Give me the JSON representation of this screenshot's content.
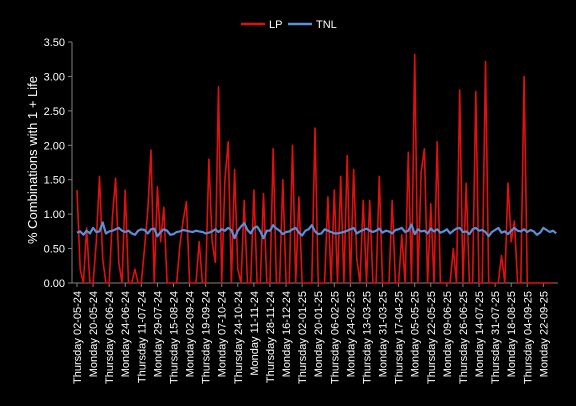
{
  "chart_data": {
    "type": "line",
    "title": "",
    "xlabel": "",
    "ylabel": "% Combinations with 1 + Life",
    "ylim": [
      0,
      3.5
    ],
    "yticks": [
      "0.00",
      "0.50",
      "1.00",
      "1.50",
      "2.00",
      "2.50",
      "3.00",
      "3.50"
    ],
    "grid": false,
    "legend_position": "top",
    "x_tick_labels": [
      "Thursday  02-05-24",
      "Monday  20-05-24",
      "Thursday  06-06-24",
      "Monday  24-06-24",
      "Thursday  11-07-24",
      "Monday  29-07-24",
      "Thursday  15-08-24",
      "Monday  02-09-24",
      "Thursday  19-09-24",
      "Monday  07-10-24",
      "Thursday  24-10-24",
      "Monday  11-11-24",
      "Thursday  28-11-24",
      "Monday  16-12-24",
      "Thursday  02-01-25",
      "Monday  20-01-25",
      "Thursday  06-02-25",
      "Monday  24-02-25",
      "Thursday  13-03-25",
      "Monday  31-03-25",
      "Thursday  17-04-25",
      "Monday  05-05-25",
      "Thursday  22-05-25",
      "Monday  09-06-25",
      "Thursday  26-06-25",
      "Monday  14-07-25",
      "Thursday  31-07-25",
      "Monday  18-08-25",
      "Thursday  04-09-25",
      "Monday  22-09-25"
    ],
    "points_per_label": 5,
    "series": [
      {
        "name": "LP",
        "color": "#e01010",
        "values": [
          1.35,
          0.2,
          0.0,
          0.8,
          0.0,
          0.0,
          0.6,
          1.55,
          0.35,
          0.0,
          0.0,
          0.95,
          1.52,
          0.3,
          0.0,
          1.35,
          0.0,
          0.0,
          0.2,
          0.0,
          0.0,
          0.5,
          1.05,
          1.93,
          0.0,
          1.4,
          0.6,
          1.1,
          0.0,
          0.0,
          0.0,
          0.0,
          0.55,
          0.9,
          1.18,
          0.0,
          0.0,
          0.0,
          0.6,
          0.0,
          0.0,
          1.8,
          0.6,
          0.3,
          2.85,
          0.0,
          1.5,
          2.05,
          0.0,
          1.65,
          0.2,
          0.0,
          1.2,
          0.0,
          0.0,
          1.35,
          0.0,
          0.0,
          1.3,
          0.0,
          0.0,
          1.95,
          0.0,
          0.0,
          1.5,
          0.0,
          0.0,
          2.0,
          0.0,
          1.25,
          0.0,
          0.0,
          0.0,
          0.0,
          2.25,
          0.0,
          0.0,
          0.0,
          1.25,
          0.0,
          1.35,
          0.0,
          1.55,
          0.0,
          1.85,
          0.0,
          1.65,
          0.35,
          0.0,
          1.2,
          0.0,
          1.2,
          0.0,
          0.0,
          1.55,
          0.0,
          0.0,
          0.0,
          1.2,
          0.0,
          0.0,
          0.7,
          0.0,
          1.9,
          0.0,
          3.32,
          0.0,
          1.6,
          1.95,
          0.0,
          1.15,
          0.0,
          2.05,
          0.0,
          0.0,
          0.0,
          0.0,
          0.5,
          0.0,
          2.8,
          0.0,
          1.45,
          0.0,
          0.0,
          2.78,
          0.0,
          0.0,
          3.22,
          0.0,
          0.0,
          0.0,
          0.0,
          0.4,
          0.0,
          1.45,
          0.6,
          0.9,
          0.0,
          0.0,
          3.0,
          0.0,
          0.0,
          0.0,
          0.0,
          0.0,
          0.0,
          0.0,
          0.0,
          0.0
        ]
      },
      {
        "name": "TNL",
        "color": "#5b8fd8",
        "values": [
          0.73,
          0.75,
          0.7,
          0.76,
          0.72,
          0.8,
          0.74,
          0.75,
          0.88,
          0.72,
          0.75,
          0.76,
          0.78,
          0.8,
          0.76,
          0.74,
          0.76,
          0.72,
          0.7,
          0.76,
          0.78,
          0.77,
          0.72,
          0.78,
          0.79,
          0.68,
          0.74,
          0.78,
          0.76,
          0.7,
          0.71,
          0.74,
          0.75,
          0.77,
          0.76,
          0.75,
          0.74,
          0.76,
          0.75,
          0.74,
          0.72,
          0.73,
          0.75,
          0.78,
          0.74,
          0.78,
          0.76,
          0.8,
          0.77,
          0.65,
          0.76,
          0.82,
          0.87,
          0.77,
          0.72,
          0.8,
          0.82,
          0.75,
          0.65,
          0.76,
          0.76,
          0.84,
          0.79,
          0.76,
          0.71,
          0.74,
          0.75,
          0.78,
          0.8,
          0.73,
          0.69,
          0.76,
          0.78,
          0.84,
          0.75,
          0.71,
          0.72,
          0.78,
          0.76,
          0.74,
          0.72,
          0.72,
          0.73,
          0.74,
          0.76,
          0.78,
          0.8,
          0.72,
          0.75,
          0.77,
          0.79,
          0.76,
          0.74,
          0.76,
          0.79,
          0.73,
          0.76,
          0.75,
          0.72,
          0.77,
          0.78,
          0.8,
          0.74,
          0.76,
          0.85,
          0.71,
          0.78,
          0.75,
          0.76,
          0.72,
          0.79,
          0.75,
          0.78,
          0.73,
          0.75,
          0.78,
          0.72,
          0.76,
          0.79,
          0.8,
          0.74,
          0.75,
          0.71,
          0.78,
          0.8,
          0.76,
          0.77,
          0.74,
          0.68,
          0.74,
          0.77,
          0.8,
          0.73,
          0.75,
          0.71,
          0.76,
          0.8,
          0.76,
          0.75,
          0.78,
          0.74,
          0.77,
          0.75,
          0.7,
          0.73,
          0.8,
          0.77,
          0.74,
          0.76,
          0.72
        ]
      }
    ]
  }
}
